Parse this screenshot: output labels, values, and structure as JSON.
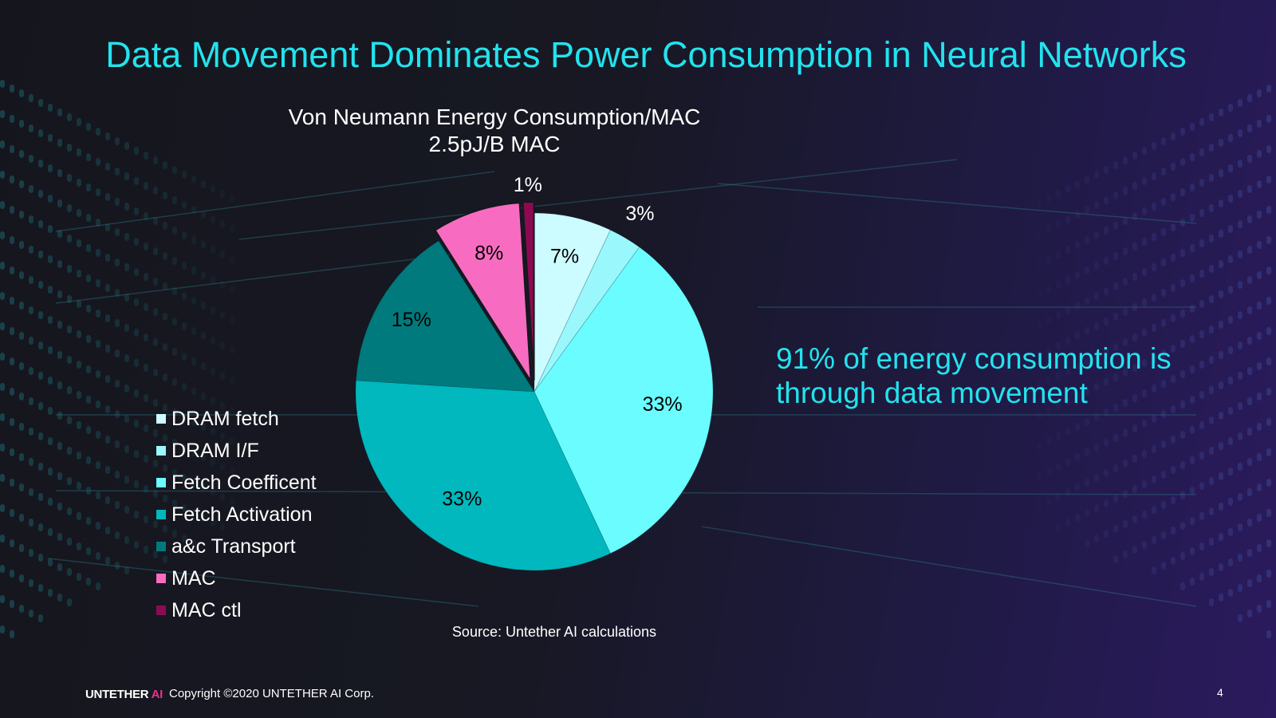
{
  "slide": {
    "title": "Data Movement Dominates Power Consumption in Neural Networks",
    "callout": "91% of energy consumption is through data movement",
    "source": "Source: Untether AI calculations",
    "footer": {
      "logo_main": "UNTETHER",
      "logo_accent": "AI",
      "copyright": "Copyright ©2020 UNTETHER AI Corp.",
      "page_number": "4"
    },
    "colors": {
      "title": "#22e3ee",
      "logo_accent": "#e8308c"
    }
  },
  "chart_data": {
    "type": "pie",
    "title": "Von Neumann Energy Consumption/MAC",
    "subtitle": "2.5pJ/B MAC",
    "legend_position": "left",
    "start_angle": "12 o'clock",
    "direction": "clockwise",
    "slices": [
      {
        "label": "DRAM fetch",
        "value": 7,
        "display": "7%",
        "color": "#ccfcff",
        "exploded": false,
        "label_color": "#000000"
      },
      {
        "label": "DRAM I/F",
        "value": 3,
        "display": "3%",
        "color": "#9af8fd",
        "exploded": false,
        "label_color": "#ffffff"
      },
      {
        "label": "Fetch Coefficent",
        "value": 33,
        "display": "33%",
        "color": "#6afcff",
        "exploded": false,
        "label_color": "#000000"
      },
      {
        "label": "Fetch Activation",
        "value": 33,
        "display": "33%",
        "color": "#00b8bd",
        "exploded": false,
        "label_color": "#000000"
      },
      {
        "label": "a&c Transport",
        "value": 15,
        "display": "15%",
        "color": "#007a7c",
        "exploded": false,
        "label_color": "#000000"
      },
      {
        "label": "MAC",
        "value": 8,
        "display": "8%",
        "color": "#f76cc0",
        "exploded": true,
        "label_color": "#000000"
      },
      {
        "label": "MAC ctl",
        "value": 1,
        "display": "1%",
        "color": "#8d0a52",
        "exploded": true,
        "label_color": "#ffffff"
      }
    ]
  }
}
